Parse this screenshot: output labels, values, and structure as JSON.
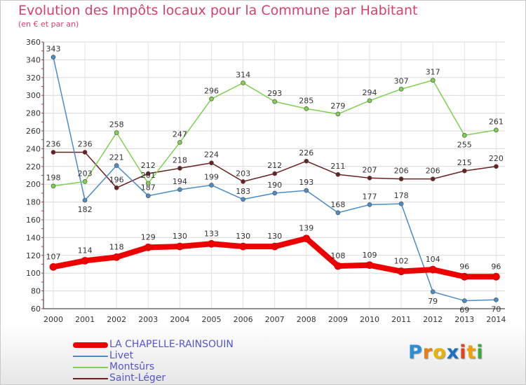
{
  "header": {
    "title": "Evolution des Impôts locaux pour la Commune par Habitant",
    "subtitle": "(en € et par an)"
  },
  "logo": {
    "text": "Proxiti",
    "letters": [
      "P",
      "r",
      "o",
      "x",
      "i",
      "t",
      "i"
    ],
    "colors": [
      "#2a8fd6",
      "#f07b10",
      "#e8b400",
      "#1a6fc4",
      "#e8401c",
      "#f5a000",
      "#3aa83a"
    ]
  },
  "chart_data": {
    "type": "line",
    "title": "Evolution des Impôts locaux pour la Commune par Habitant",
    "subtitle": "(en € et par an)",
    "xlabel": "",
    "ylabel": "",
    "x": [
      "2000",
      "2001",
      "2002",
      "2003",
      "2004",
      "2005",
      "2006",
      "2007",
      "2008",
      "2009",
      "2010",
      "2011",
      "2012",
      "2013",
      "2014"
    ],
    "ylim": [
      60,
      360
    ],
    "yticks": [
      60,
      80,
      100,
      120,
      140,
      160,
      180,
      200,
      220,
      240,
      260,
      280,
      300,
      320,
      340,
      360
    ],
    "grid": true,
    "legend_position": "bottom-left",
    "series": [
      {
        "name": "Saint-Léger",
        "color": "#6b1f1f",
        "values": [
          236,
          236,
          196,
          212,
          218,
          224,
          203,
          212,
          226,
          211,
          207,
          206,
          206,
          215,
          220
        ],
        "labels": [
          "236",
          "236",
          "196",
          "212",
          "218",
          "224",
          "203",
          "212",
          "226",
          "211",
          "207",
          "206",
          "206",
          "215",
          "220"
        ]
      },
      {
        "name": "Livet",
        "color": "#4a8cc6",
        "values": [
          343,
          182,
          221,
          187,
          194,
          199,
          183,
          190,
          193,
          168,
          177,
          178,
          79,
          69,
          70
        ],
        "labels": [
          "343",
          "182",
          "221",
          "187",
          "194",
          "199",
          "183",
          "190",
          "193",
          "168",
          "177",
          "178",
          "79",
          "69",
          "70"
        ]
      },
      {
        "name": "Montsûrs",
        "color": "#7fd04f",
        "values": [
          198,
          203,
          258,
          201,
          247,
          296,
          314,
          293,
          285,
          279,
          294,
          307,
          317,
          255,
          261
        ],
        "labels": [
          "198",
          "203",
          "258",
          "201",
          "247",
          "296",
          "314",
          "293",
          "285",
          "279",
          "294",
          "307",
          "317",
          "255",
          "261"
        ]
      },
      {
        "name": "LA CHAPELLE-RAINSOUIN",
        "color": "#ee0000",
        "values": [
          107,
          114,
          118,
          129,
          130,
          133,
          130,
          130,
          139,
          108,
          109,
          102,
          104,
          96,
          96
        ],
        "labels": [
          "107",
          "114",
          "118",
          "129",
          "130",
          "133",
          "130",
          "130",
          "139",
          "108",
          "109",
          "102",
          "104",
          "96",
          "96"
        ]
      }
    ],
    "legend": [
      {
        "name": "LA CHAPELLE-RAINSOUIN",
        "color": "#ee0000",
        "thick": true
      },
      {
        "name": "Livet",
        "color": "#4a8cc6",
        "thick": false
      },
      {
        "name": "Montsûrs",
        "color": "#7fd04f",
        "thick": false
      },
      {
        "name": "Saint-Léger",
        "color": "#6b1f1f",
        "thick": false
      }
    ]
  }
}
